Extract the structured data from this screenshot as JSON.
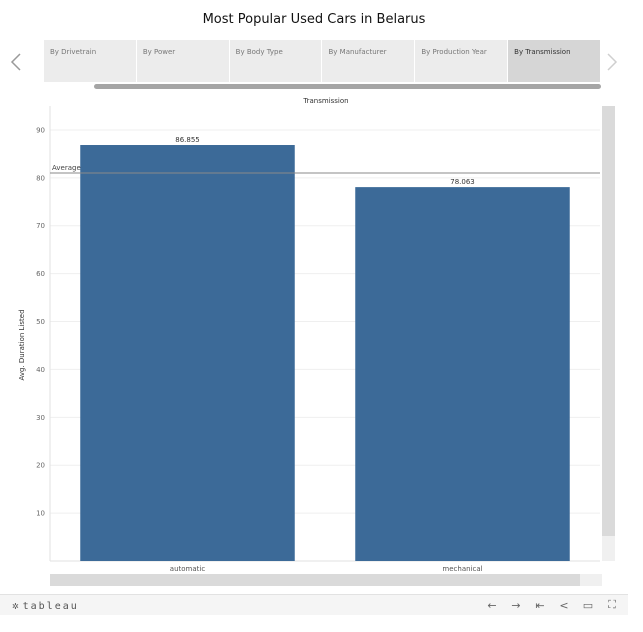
{
  "page": {
    "title": "Most Popular Used Cars in Belarus"
  },
  "tabs": [
    {
      "label": "By Drivetrain",
      "active": false
    },
    {
      "label": "By Power",
      "active": false
    },
    {
      "label": "By Body Type",
      "active": false
    },
    {
      "label": "By Manufacturer",
      "active": false
    },
    {
      "label": "By Production Year",
      "active": false
    },
    {
      "label": "By Transmission",
      "active": true
    }
  ],
  "chart_data": {
    "type": "bar",
    "title": "Transmission",
    "xlabel": "",
    "ylabel": "Avg. Duration Listed",
    "categories": [
      "automatic",
      "mechanical"
    ],
    "values": [
      86.855,
      78.063
    ],
    "data_labels": [
      "86.855",
      "78.063"
    ],
    "ylim": [
      0,
      95
    ],
    "yticks": [
      10,
      20,
      30,
      40,
      50,
      60,
      70,
      80,
      90
    ],
    "reference_line": {
      "label": "Average",
      "value": 81
    },
    "bar_color": "#3c6a98",
    "grid": true
  },
  "footer": {
    "brand": "tableau",
    "brand_mark": "✲",
    "tools": [
      {
        "name": "undo-icon",
        "glyph": "←"
      },
      {
        "name": "redo-icon",
        "glyph": "→"
      },
      {
        "name": "revert-icon",
        "glyph": "⇤"
      },
      {
        "name": "share-icon",
        "glyph": "<"
      },
      {
        "name": "comment-icon",
        "glyph": "▭"
      },
      {
        "name": "fullscreen-icon",
        "glyph": "⛶"
      }
    ]
  }
}
